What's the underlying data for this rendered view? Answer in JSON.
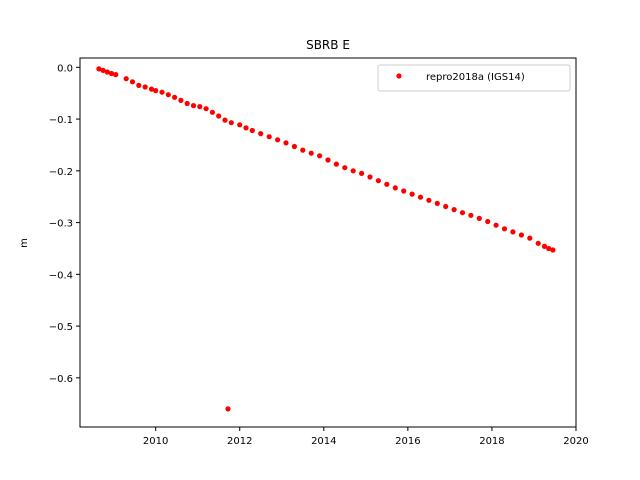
{
  "chart_data": {
    "type": "scatter",
    "title": "SBRB E",
    "xlabel": "",
    "ylabel": "m",
    "xlim": [
      2008.2,
      2020.0
    ],
    "ylim": [
      -0.695,
      0.018
    ],
    "xticks": [
      2010,
      2012,
      2014,
      2016,
      2018,
      2020
    ],
    "yticks": [
      0.0,
      -0.1,
      -0.2,
      -0.3,
      -0.4,
      -0.5,
      -0.6
    ],
    "ytick_labels": [
      "0.0",
      "−0.1",
      "−0.2",
      "−0.3",
      "−0.4",
      "−0.5",
      "−0.6"
    ],
    "grid": false,
    "legend": {
      "position": "top-right"
    },
    "series": [
      {
        "name": "repro2018a (IGS14)",
        "color": "#ff0000",
        "marker": "circle",
        "points": [
          [
            2008.65,
            -0.003
          ],
          [
            2008.75,
            -0.006
          ],
          [
            2008.85,
            -0.009
          ],
          [
            2008.95,
            -0.012
          ],
          [
            2009.05,
            -0.014
          ],
          [
            2009.3,
            -0.022
          ],
          [
            2009.45,
            -0.028
          ],
          [
            2009.6,
            -0.035
          ],
          [
            2009.75,
            -0.038
          ],
          [
            2009.9,
            -0.042
          ],
          [
            2010.0,
            -0.045
          ],
          [
            2010.15,
            -0.048
          ],
          [
            2010.3,
            -0.053
          ],
          [
            2010.45,
            -0.058
          ],
          [
            2010.6,
            -0.064
          ],
          [
            2010.75,
            -0.07
          ],
          [
            2010.9,
            -0.074
          ],
          [
            2011.05,
            -0.076
          ],
          [
            2011.2,
            -0.08
          ],
          [
            2011.35,
            -0.087
          ],
          [
            2011.5,
            -0.094
          ],
          [
            2011.65,
            -0.102
          ],
          [
            2011.8,
            -0.107
          ],
          [
            2012.0,
            -0.111
          ],
          [
            2012.15,
            -0.117
          ],
          [
            2012.3,
            -0.122
          ],
          [
            2012.5,
            -0.128
          ],
          [
            2012.7,
            -0.134
          ],
          [
            2012.9,
            -0.14
          ],
          [
            2013.1,
            -0.146
          ],
          [
            2013.3,
            -0.153
          ],
          [
            2013.5,
            -0.16
          ],
          [
            2013.7,
            -0.166
          ],
          [
            2013.9,
            -0.171
          ],
          [
            2014.1,
            -0.179
          ],
          [
            2014.3,
            -0.187
          ],
          [
            2014.5,
            -0.194
          ],
          [
            2014.7,
            -0.2
          ],
          [
            2014.9,
            -0.205
          ],
          [
            2015.1,
            -0.212
          ],
          [
            2015.3,
            -0.219
          ],
          [
            2015.5,
            -0.226
          ],
          [
            2015.7,
            -0.233
          ],
          [
            2015.9,
            -0.239
          ],
          [
            2016.1,
            -0.245
          ],
          [
            2016.3,
            -0.251
          ],
          [
            2016.5,
            -0.257
          ],
          [
            2016.7,
            -0.263
          ],
          [
            2016.9,
            -0.269
          ],
          [
            2017.1,
            -0.275
          ],
          [
            2017.3,
            -0.281
          ],
          [
            2017.5,
            -0.286
          ],
          [
            2017.7,
            -0.292
          ],
          [
            2017.9,
            -0.298
          ],
          [
            2018.1,
            -0.305
          ],
          [
            2018.3,
            -0.312
          ],
          [
            2018.5,
            -0.318
          ],
          [
            2018.7,
            -0.324
          ],
          [
            2018.9,
            -0.33
          ],
          [
            2019.1,
            -0.34
          ],
          [
            2019.25,
            -0.346
          ],
          [
            2019.35,
            -0.35
          ],
          [
            2019.45,
            -0.353
          ],
          [
            2011.72,
            -0.66
          ]
        ]
      }
    ]
  }
}
